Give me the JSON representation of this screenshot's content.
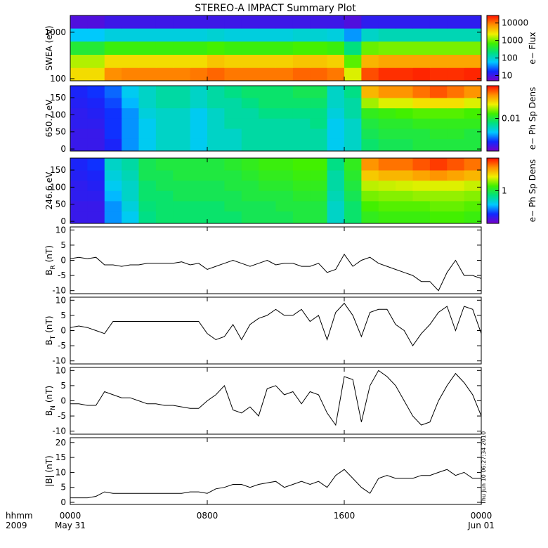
{
  "title": "STEREO-A IMPACT Summary Plot",
  "timestamp": "Thu Jun 10 06:27:34 2010",
  "chart_data": [
    {
      "type": "heatmap",
      "ylabel": "SWEA (eV)",
      "log_y": true,
      "ylim": [
        90,
        2300
      ],
      "yticks": [
        100,
        1000
      ],
      "xlim": [
        0,
        24
      ],
      "x": [
        0.5,
        1.5,
        2.5,
        3.5,
        4.5,
        5.5,
        6.5,
        7.5,
        8.5,
        9.5,
        10.5,
        11.5,
        12.5,
        13.5,
        14.5,
        15.5,
        16.5,
        17.5,
        18.5,
        19.5,
        20.5,
        21.5,
        22.5,
        23.5
      ],
      "y": [
        125,
        240,
        460,
        890,
        1680
      ],
      "z": [
        [
          3000,
          3000,
          8000,
          9000,
          9000,
          9000,
          9000,
          10000,
          12000,
          10000,
          10000,
          10000,
          10000,
          12000,
          12000,
          10000,
          2000,
          15000,
          20000,
          20000,
          22000,
          20000,
          20000,
          22000
        ],
        [
          1500,
          1500,
          3000,
          3000,
          3000,
          3000,
          3000,
          3000,
          4000,
          3500,
          3500,
          3500,
          3500,
          4000,
          4000,
          3500,
          800,
          5000,
          6000,
          6000,
          6000,
          6000,
          6000,
          6000
        ],
        [
          400,
          400,
          600,
          600,
          600,
          600,
          600,
          600,
          700,
          600,
          600,
          600,
          600,
          700,
          700,
          600,
          200,
          900,
          1000,
          1000,
          1000,
          1000,
          1000,
          1000
        ],
        [
          60,
          60,
          80,
          80,
          80,
          80,
          80,
          80,
          90,
          80,
          80,
          80,
          80,
          90,
          90,
          80,
          40,
          100,
          120,
          120,
          120,
          120,
          120,
          120
        ],
        [
          8,
          8,
          10,
          10,
          10,
          10,
          10,
          10,
          10,
          10,
          10,
          10,
          10,
          10,
          10,
          10,
          8,
          12,
          12,
          12,
          12,
          12,
          12,
          12
        ]
      ],
      "log_z": true,
      "zlim": [
        5,
        27000
      ],
      "zticks": [
        10,
        100,
        1000,
        10000
      ],
      "colorbar_label": "e− Flux",
      "colormap": [
        "#7800c8",
        "#1028ff",
        "#00c8ff",
        "#00e080",
        "#40f000",
        "#f0f000",
        "#ff9000",
        "#ff1000"
      ]
    },
    {
      "type": "heatmap",
      "ylabel": "650.7 eV",
      "log_y": false,
      "ylim": [
        -6,
        185
      ],
      "yticks": [
        0,
        50,
        100,
        150
      ],
      "xlim": [
        0,
        24
      ],
      "x": [
        0.5,
        1.5,
        2.5,
        3.5,
        4.5,
        5.5,
        6.5,
        7.5,
        8.5,
        9.5,
        10.5,
        11.5,
        12.5,
        13.5,
        14.5,
        15.5,
        16.5,
        17.5,
        18.5,
        19.5,
        20.5,
        21.5,
        22.5,
        23.5
      ],
      "y": [
        15,
        45,
        75,
        105,
        135,
        165
      ],
      "z": [
        [
          0.0015,
          0.0015,
          0.0018,
          0.003,
          0.004,
          0.005,
          0.005,
          0.004,
          0.005,
          0.005,
          0.006,
          0.006,
          0.006,
          0.006,
          0.006,
          0.004,
          0.005,
          0.008,
          0.009,
          0.009,
          0.01,
          0.01,
          0.01,
          0.01
        ],
        [
          0.0015,
          0.0015,
          0.002,
          0.003,
          0.004,
          0.005,
          0.005,
          0.004,
          0.005,
          0.005,
          0.006,
          0.006,
          0.006,
          0.006,
          0.006,
          0.004,
          0.005,
          0.009,
          0.01,
          0.01,
          0.01,
          0.011,
          0.011,
          0.01
        ],
        [
          0.0016,
          0.0016,
          0.002,
          0.003,
          0.004,
          0.005,
          0.005,
          0.004,
          0.005,
          0.006,
          0.006,
          0.006,
          0.006,
          0.006,
          0.007,
          0.004,
          0.005,
          0.01,
          0.011,
          0.011,
          0.012,
          0.012,
          0.012,
          0.012
        ],
        [
          0.0016,
          0.0017,
          0.002,
          0.003,
          0.0045,
          0.005,
          0.005,
          0.004,
          0.005,
          0.006,
          0.006,
          0.007,
          0.007,
          0.007,
          0.007,
          0.0045,
          0.006,
          0.012,
          0.013,
          0.014,
          0.015,
          0.015,
          0.015,
          0.014
        ],
        [
          0.0017,
          0.0018,
          0.0022,
          0.0035,
          0.005,
          0.006,
          0.006,
          0.005,
          0.006,
          0.006,
          0.007,
          0.008,
          0.008,
          0.008,
          0.008,
          0.005,
          0.006,
          0.02,
          0.025,
          0.025,
          0.03,
          0.03,
          0.03,
          0.025
        ],
        [
          0.0018,
          0.002,
          0.0025,
          0.004,
          0.005,
          0.006,
          0.006,
          0.005,
          0.006,
          0.007,
          0.008,
          0.008,
          0.008,
          0.009,
          0.009,
          0.005,
          0.007,
          0.04,
          0.05,
          0.05,
          0.06,
          0.07,
          0.06,
          0.05
        ]
      ],
      "log_z": true,
      "zlim": [
        0.001,
        0.1
      ],
      "zticks": [
        0.01
      ],
      "colorbar_label": "e− Ph Sp Dens",
      "colormap": [
        "#7800c8",
        "#1028ff",
        "#00c8ff",
        "#00e080",
        "#40f000",
        "#f0f000",
        "#ff9000",
        "#ff1000"
      ]
    },
    {
      "type": "heatmap",
      "ylabel": "246.6 eV",
      "log_y": false,
      "ylim": [
        -6,
        185
      ],
      "yticks": [
        0,
        50,
        100,
        150
      ],
      "xlim": [
        0,
        24
      ],
      "x": [
        0.5,
        1.5,
        2.5,
        3.5,
        4.5,
        5.5,
        6.5,
        7.5,
        8.5,
        9.5,
        10.5,
        11.5,
        12.5,
        13.5,
        14.5,
        15.5,
        16.5,
        17.5,
        18.5,
        19.5,
        20.5,
        21.5,
        22.5,
        23.5
      ],
      "y": [
        15,
        45,
        75,
        105,
        135,
        165
      ],
      "z": [
        [
          0.15,
          0.15,
          0.3,
          0.4,
          0.7,
          0.8,
          0.8,
          0.8,
          0.8,
          0.8,
          0.9,
          0.9,
          0.9,
          1,
          1,
          0.5,
          0.8,
          1.2,
          1.3,
          1.3,
          1.3,
          1.4,
          1.4,
          1.3
        ],
        [
          0.15,
          0.15,
          0.3,
          0.45,
          0.75,
          0.8,
          0.8,
          0.8,
          0.8,
          0.9,
          0.9,
          0.9,
          1,
          1,
          1,
          0.5,
          0.8,
          1.4,
          1.5,
          1.5,
          1.5,
          1.6,
          1.6,
          1.5
        ],
        [
          0.16,
          0.16,
          0.35,
          0.5,
          0.8,
          0.8,
          0.9,
          0.9,
          0.9,
          0.9,
          1,
          1,
          1,
          1.1,
          1.1,
          0.55,
          0.9,
          1.7,
          1.8,
          1.8,
          1.9,
          1.9,
          1.9,
          1.8
        ],
        [
          0.16,
          0.17,
          0.4,
          0.5,
          0.8,
          0.9,
          0.9,
          0.9,
          0.9,
          1,
          1,
          1.1,
          1.1,
          1.2,
          1.2,
          0.6,
          1,
          2.2,
          2.3,
          2.4,
          2.5,
          2.5,
          2.5,
          2.3
        ],
        [
          0.17,
          0.18,
          0.45,
          0.55,
          0.9,
          0.9,
          1,
          1,
          1,
          1,
          1.1,
          1.2,
          1.2,
          1.3,
          1.3,
          0.6,
          1.1,
          3.5,
          4,
          4,
          4.5,
          5,
          4.5,
          4
        ],
        [
          0.18,
          0.2,
          0.5,
          0.6,
          0.9,
          1,
          1,
          1,
          1,
          1.1,
          1.2,
          1.3,
          1.3,
          1.4,
          1.4,
          0.7,
          1.2,
          5,
          6,
          6,
          7,
          8,
          7,
          6
        ]
      ],
      "log_z": true,
      "zlim": [
        0.1,
        10
      ],
      "zticks": [
        1
      ],
      "colorbar_label": "e− Ph Sp Dens",
      "colormap": [
        "#7800c8",
        "#1028ff",
        "#00c8ff",
        "#00e080",
        "#40f000",
        "#f0f000",
        "#ff9000",
        "#ff1000"
      ]
    },
    {
      "type": "line",
      "ylabel": "B",
      "ylabel_sub": "R",
      "ylabel_unit": "(nT)",
      "ylim": [
        -11,
        11
      ],
      "yticks": [
        -10,
        -5,
        0,
        5,
        10
      ],
      "xlim": [
        0,
        24
      ],
      "color": "#000000",
      "x": [
        0,
        0.5,
        1,
        1.5,
        2,
        2.5,
        3,
        3.5,
        4,
        4.5,
        5,
        5.5,
        6,
        6.5,
        7,
        7.5,
        8,
        8.5,
        9,
        9.5,
        10,
        10.5,
        11,
        11.5,
        12,
        12.5,
        13,
        13.5,
        14,
        14.5,
        15,
        15.5,
        16,
        16.5,
        17,
        17.5,
        18,
        18.5,
        19,
        19.5,
        20,
        20.5,
        21,
        21.5,
        22,
        22.5,
        23,
        23.5,
        24
      ],
      "values": [
        0.5,
        1,
        0.5,
        1,
        -1.5,
        -1.5,
        -2,
        -1.5,
        -1.5,
        -1,
        -1,
        -1,
        -1,
        -0.5,
        -1.5,
        -1,
        -3,
        -2,
        -1,
        0,
        -1,
        -2,
        -1,
        0,
        -1.5,
        -1,
        -1,
        -2,
        -2,
        -1,
        -4,
        -3,
        2,
        -2,
        0,
        1,
        -1,
        -2,
        -3,
        -4,
        -5,
        -7,
        -7,
        -10,
        -4,
        0,
        -5,
        -5,
        -6
      ]
    },
    {
      "type": "line",
      "ylabel": "B",
      "ylabel_sub": "T",
      "ylabel_unit": "(nT)",
      "ylim": [
        -11,
        11
      ],
      "yticks": [
        -10,
        -5,
        0,
        5,
        10
      ],
      "xlim": [
        0,
        24
      ],
      "color": "#000000",
      "x": [
        0,
        0.5,
        1,
        1.5,
        2,
        2.5,
        3,
        3.5,
        4,
        4.5,
        5,
        5.5,
        6,
        6.5,
        7,
        7.5,
        8,
        8.5,
        9,
        9.5,
        10,
        10.5,
        11,
        11.5,
        12,
        12.5,
        13,
        13.5,
        14,
        14.5,
        15,
        15.5,
        16,
        16.5,
        17,
        17.5,
        18,
        18.5,
        19,
        19.5,
        20,
        20.5,
        21,
        21.5,
        22,
        22.5,
        23,
        23.5,
        24
      ],
      "values": [
        1,
        1.5,
        1,
        0,
        -1,
        3,
        3,
        3,
        3,
        3,
        3,
        3,
        3,
        3,
        3,
        3,
        -1,
        -3,
        -2,
        2,
        -3,
        2,
        4,
        5,
        7,
        5,
        5,
        7,
        3,
        5,
        -3,
        6,
        9,
        5,
        -2,
        6,
        7,
        7,
        2,
        0,
        -5,
        -1,
        2,
        6,
        8,
        0,
        8,
        7,
        -1
      ]
    },
    {
      "type": "line",
      "ylabel": "B",
      "ylabel_sub": "N",
      "ylabel_unit": "(nT)",
      "ylim": [
        -11,
        11
      ],
      "yticks": [
        -10,
        -5,
        0,
        5,
        10
      ],
      "xlim": [
        0,
        24
      ],
      "color": "#000000",
      "x": [
        0,
        0.5,
        1,
        1.5,
        2,
        2.5,
        3,
        3.5,
        4,
        4.5,
        5,
        5.5,
        6,
        6.5,
        7,
        7.5,
        8,
        8.5,
        9,
        9.5,
        10,
        10.5,
        11,
        11.5,
        12,
        12.5,
        13,
        13.5,
        14,
        14.5,
        15,
        15.5,
        16,
        16.5,
        17,
        17.5,
        18,
        18.5,
        19,
        19.5,
        20,
        20.5,
        21,
        21.5,
        22,
        22.5,
        23,
        23.5,
        24
      ],
      "values": [
        -1,
        -1,
        -1.5,
        -1.5,
        3,
        2,
        1,
        1,
        0,
        -1,
        -1,
        -1.5,
        -1.5,
        -2,
        -2.5,
        -2.5,
        0,
        2,
        5,
        -3,
        -4,
        -2,
        -5,
        4,
        5,
        2,
        3,
        -1,
        3,
        2,
        -4,
        -8,
        8,
        7,
        -7,
        5,
        10,
        8,
        5,
        0,
        -5,
        -8,
        -7,
        0,
        5,
        9,
        6,
        2,
        -5
      ]
    },
    {
      "type": "line",
      "ylabel": "|B| (nT)",
      "ylim": [
        -0.7,
        21.6
      ],
      "yticks": [
        0,
        5,
        10,
        15,
        20
      ],
      "xlim": [
        0,
        24
      ],
      "color": "#000000",
      "x": [
        0,
        0.5,
        1,
        1.5,
        2,
        2.5,
        3,
        3.5,
        4,
        4.5,
        5,
        5.5,
        6,
        6.5,
        7,
        7.5,
        8,
        8.5,
        9,
        9.5,
        10,
        10.5,
        11,
        11.5,
        12,
        12.5,
        13,
        13.5,
        14,
        14.5,
        15,
        15.5,
        16,
        16.5,
        17,
        17.5,
        18,
        18.5,
        19,
        19.5,
        20,
        20.5,
        21,
        21.5,
        22,
        22.5,
        23,
        23.5,
        24
      ],
      "values": [
        1.5,
        1.5,
        1.5,
        2,
        3.5,
        3,
        3,
        3,
        3,
        3,
        3,
        3,
        3,
        3,
        3.5,
        3.5,
        3,
        4.5,
        5,
        6,
        6,
        5,
        6,
        6.5,
        7,
        5,
        6,
        7,
        6,
        7,
        5,
        9,
        11,
        8,
        5,
        3,
        8,
        9,
        8,
        8,
        8,
        9,
        9,
        10,
        11,
        9,
        10,
        8,
        8
      ],
      "xticks": [
        {
          "value": 0,
          "label": "0000"
        },
        {
          "value": 8,
          "label": "0800"
        },
        {
          "value": 16,
          "label": "1600"
        },
        {
          "value": 24,
          "label": "0000"
        }
      ],
      "xtick_dates": [
        "May 31",
        null,
        null,
        "Jun 01"
      ],
      "xlabel": "hhmm",
      "year": "2009"
    }
  ]
}
